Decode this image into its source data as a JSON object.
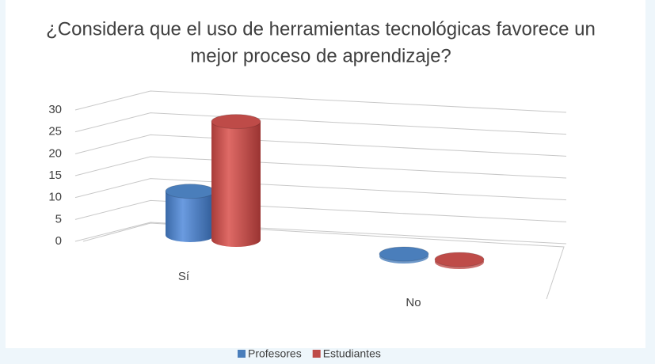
{
  "chart_data": {
    "type": "bar3d",
    "title": "¿Considera que el uso de herramientas tecnológicas favorece un mejor proceso de aprendizaje?",
    "categories": [
      "Sí",
      "No"
    ],
    "series": [
      {
        "name": "Profesores",
        "color": "#4a7ebb",
        "values": [
          10,
          0
        ]
      },
      {
        "name": "Estudiantes",
        "color": "#be4b48",
        "values": [
          27,
          0
        ]
      }
    ],
    "ylim": [
      0,
      30
    ],
    "yticks": [
      0,
      5,
      10,
      15,
      20,
      25,
      30
    ],
    "grid": true,
    "legend": "bottom"
  }
}
